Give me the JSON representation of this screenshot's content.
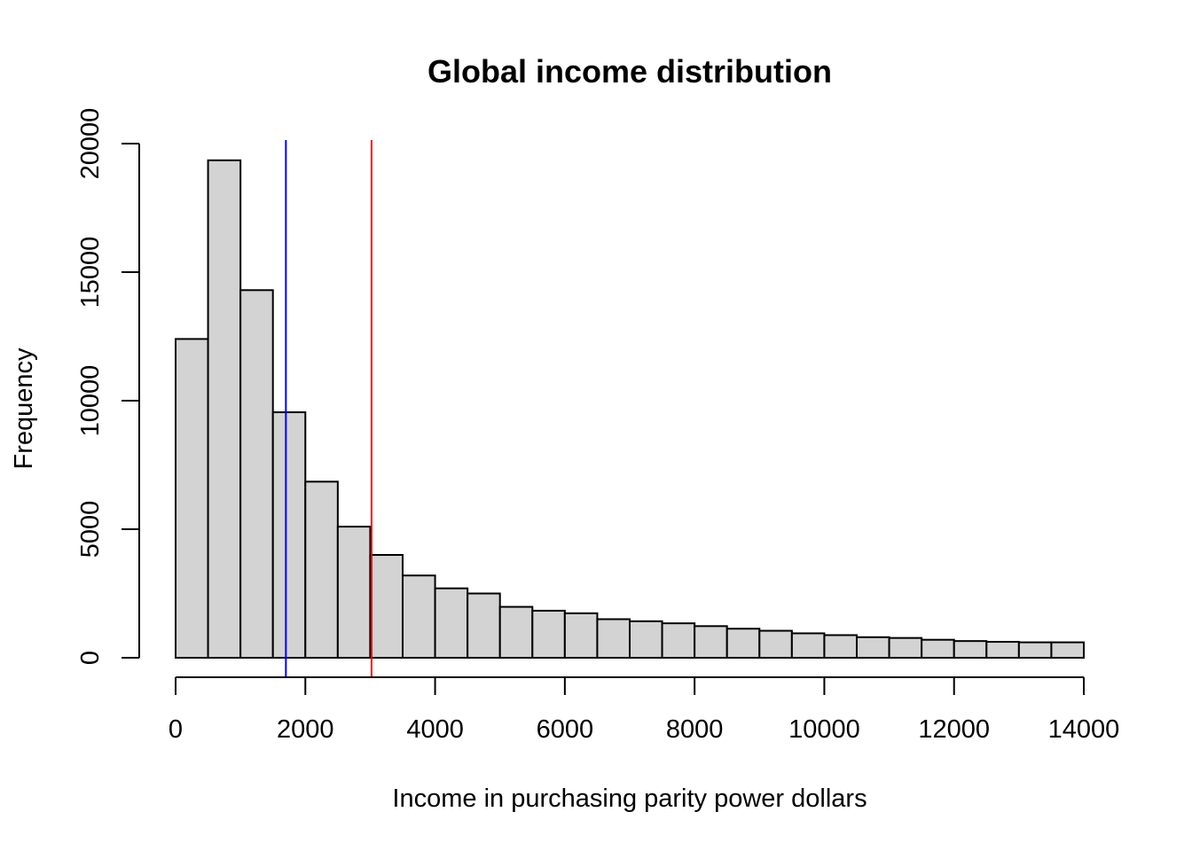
{
  "chart_data": {
    "type": "bar",
    "subtype": "histogram",
    "title": "Global income distribution",
    "xlabel": "Income in purchasing parity power dollars",
    "ylabel": "Frequency",
    "xlim": [
      0,
      14000
    ],
    "ylim": [
      0,
      20000
    ],
    "bin_width": 500,
    "bin_starts": [
      0,
      500,
      1000,
      1500,
      2000,
      2500,
      3000,
      3500,
      4000,
      4500,
      5000,
      5500,
      6000,
      6500,
      7000,
      7500,
      8000,
      8500,
      9000,
      9500,
      10000,
      10500,
      11000,
      11500,
      12000,
      12500,
      13000,
      13500
    ],
    "values": [
      12400,
      19350,
      14300,
      9550,
      6850,
      5100,
      4000,
      3200,
      2700,
      2500,
      1980,
      1830,
      1730,
      1500,
      1420,
      1340,
      1230,
      1130,
      1050,
      950,
      880,
      800,
      770,
      700,
      650,
      620,
      600,
      600
    ],
    "x_ticks": [
      0,
      2000,
      4000,
      6000,
      8000,
      10000,
      12000,
      14000
    ],
    "x_tick_labels": [
      "0",
      "2000",
      "4000",
      "6000",
      "8000",
      "10000",
      "12000",
      "14000"
    ],
    "y_ticks": [
      0,
      5000,
      10000,
      15000,
      20000
    ],
    "y_tick_labels": [
      "0",
      "5000",
      "10000",
      "15000",
      "20000"
    ],
    "vlines": [
      {
        "x": 1700,
        "color": "#0000ff"
      },
      {
        "x": 3020,
        "color": "#ff0000"
      }
    ],
    "bar_fill": "#d3d3d3",
    "grid": false,
    "legend": "none"
  }
}
